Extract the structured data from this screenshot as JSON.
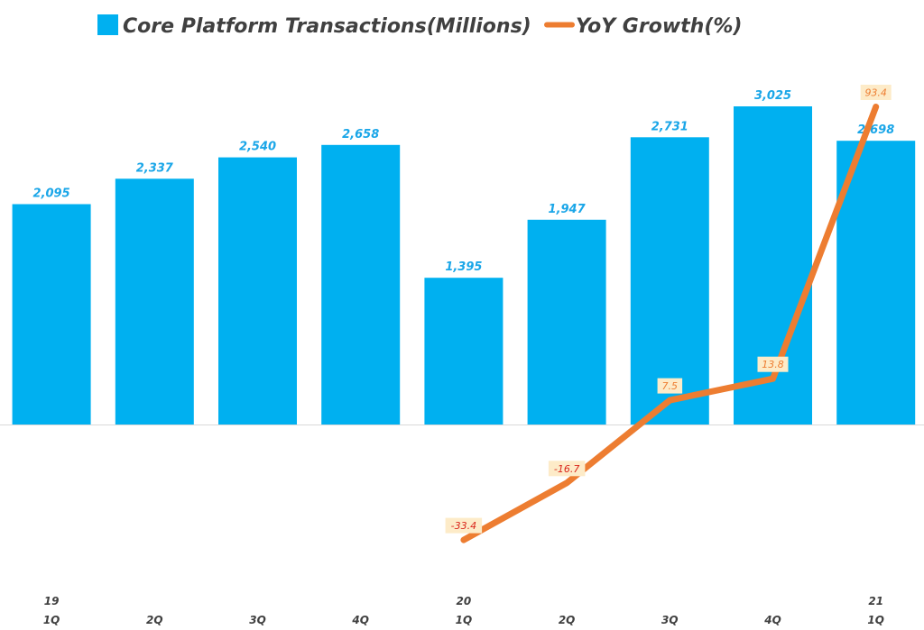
{
  "chart_data": {
    "type": "bar",
    "categories": [
      "19 1Q",
      "2Q",
      "3Q",
      "4Q",
      "20 1Q",
      "2Q",
      "3Q",
      "4Q",
      "21 1Q"
    ],
    "tick_labels": [
      {
        "year": "19",
        "quarter": "1Q"
      },
      {
        "year": "",
        "quarter": "2Q"
      },
      {
        "year": "",
        "quarter": "3Q"
      },
      {
        "year": "",
        "quarter": "4Q"
      },
      {
        "year": "20",
        "quarter": "1Q"
      },
      {
        "year": "",
        "quarter": "2Q"
      },
      {
        "year": "",
        "quarter": "3Q"
      },
      {
        "year": "",
        "quarter": "4Q"
      },
      {
        "year": "21",
        "quarter": "1Q"
      }
    ],
    "series": [
      {
        "name": "Core Platform Transactions(Millions)",
        "type": "bar",
        "color": "#00b0f0",
        "values": [
          2095,
          2337,
          2540,
          2658,
          1395,
          1947,
          2731,
          3025,
          2698
        ],
        "labels": [
          "2,095",
          "2,337",
          "2,540",
          "2,658",
          "1,395",
          "1,947",
          "2,731",
          "3,025",
          "2,698"
        ]
      },
      {
        "name": "YoY Growth(%)",
        "type": "line",
        "color": "#ed7d31",
        "values": [
          null,
          null,
          null,
          null,
          -33.4,
          -16.7,
          7.5,
          13.8,
          93.4
        ],
        "labels": [
          "",
          "",
          "",
          "",
          "-33.4",
          "-16.7",
          "7.5",
          "13.8",
          "93.4"
        ]
      }
    ],
    "title": "",
    "xlabel": "",
    "ylabel": "",
    "legend_position": "top",
    "grid": false,
    "colors": {
      "bar": "#00b0f0",
      "bar_label": "#1aa6e8",
      "line": "#ed7d31",
      "label_bg": "#fdebc8",
      "negative_label": "#d9261c",
      "positive_label": "#ed7d31"
    }
  }
}
